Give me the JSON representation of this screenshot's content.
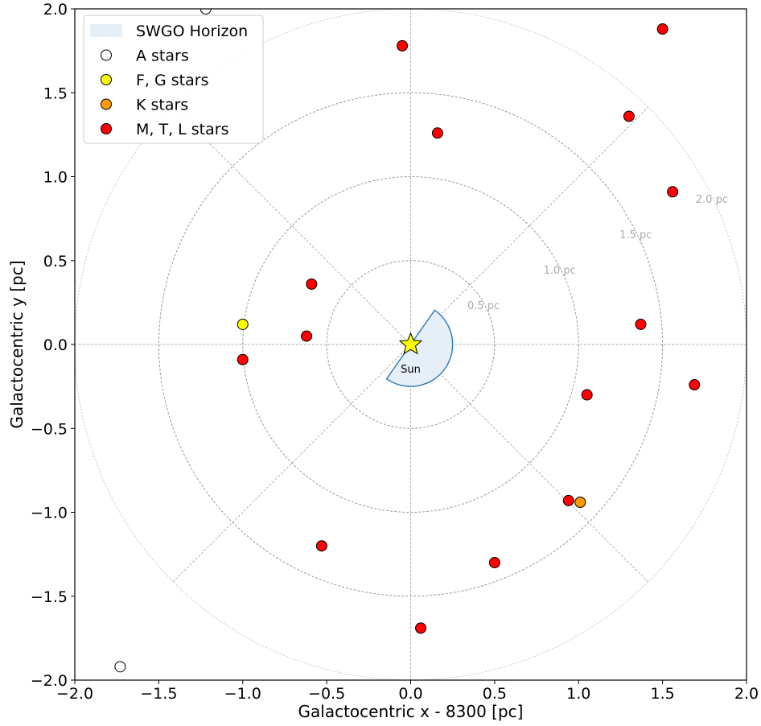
{
  "chart_data": {
    "type": "scatter",
    "xlabel": "Galactocentric x - 8300 [pc]",
    "ylabel": "Galactocentric y [pc]",
    "xlim": [
      -2.0,
      2.0
    ],
    "ylim": [
      -2.0,
      2.0
    ],
    "xticks": [
      -2.0,
      -1.5,
      -1.0,
      -0.5,
      0.0,
      0.5,
      1.0,
      1.5,
      2.0
    ],
    "yticks": [
      -2.0,
      -1.5,
      -1.0,
      -0.5,
      0.0,
      0.5,
      1.0,
      1.5,
      2.0
    ],
    "x_tick_labels": [
      "−2.0",
      "−1.5",
      "−1.0",
      "−0.5",
      "0.0",
      "0.5",
      "1.0",
      "1.5",
      "2.0"
    ],
    "y_tick_labels": [
      "−2.0",
      "−1.5",
      "−1.0",
      "−0.5",
      "0.0",
      "0.5",
      "1.0",
      "1.5",
      "2.0"
    ],
    "grid": "polar rings and radial lines, dashed grey",
    "rings": [
      {
        "radius": 0.5,
        "label": "0.5 pc"
      },
      {
        "radius": 1.0,
        "label": "1.0 pc"
      },
      {
        "radius": 1.5,
        "label": "1.5 pc"
      },
      {
        "radius": 2.0,
        "label": "2.0 pc"
      }
    ],
    "radial_lines_deg": [
      0,
      45,
      90,
      135,
      180,
      225,
      270,
      315
    ],
    "horizon_wedge": {
      "name": "SWGO Horizon",
      "radius": 0.25,
      "theta_start_deg": -125,
      "theta_end_deg": 55,
      "fill": "#e6eef7",
      "edge": "#2b7bb9"
    },
    "sun": {
      "x": 0.0,
      "y": 0.0,
      "label": "Sun",
      "color": "#ffff00"
    },
    "series": [
      {
        "name": "A stars",
        "color": "#ffffff",
        "points": [
          [
            -1.22,
            2.0
          ],
          [
            -1.73,
            -1.92
          ]
        ]
      },
      {
        "name": "F, G stars",
        "color": "#ffff00",
        "points": [
          [
            -1.0,
            0.12
          ]
        ]
      },
      {
        "name": "K stars",
        "color": "#ff9900",
        "points": [
          [
            1.01,
            -0.94
          ]
        ]
      },
      {
        "name": "M, T, L stars",
        "color": "#ff0000",
        "points": [
          [
            -0.05,
            1.78
          ],
          [
            1.5,
            1.88
          ],
          [
            0.16,
            1.26
          ],
          [
            1.3,
            1.36
          ],
          [
            1.56,
            0.91
          ],
          [
            -0.59,
            0.36
          ],
          [
            -0.62,
            0.05
          ],
          [
            -1.0,
            -0.09
          ],
          [
            1.37,
            0.12
          ],
          [
            1.69,
            -0.24
          ],
          [
            1.05,
            -0.3
          ],
          [
            0.94,
            -0.93
          ],
          [
            -0.53,
            -1.2
          ],
          [
            0.5,
            -1.3
          ],
          [
            0.06,
            -1.69
          ]
        ]
      }
    ],
    "legend_placement": "upper-left"
  }
}
